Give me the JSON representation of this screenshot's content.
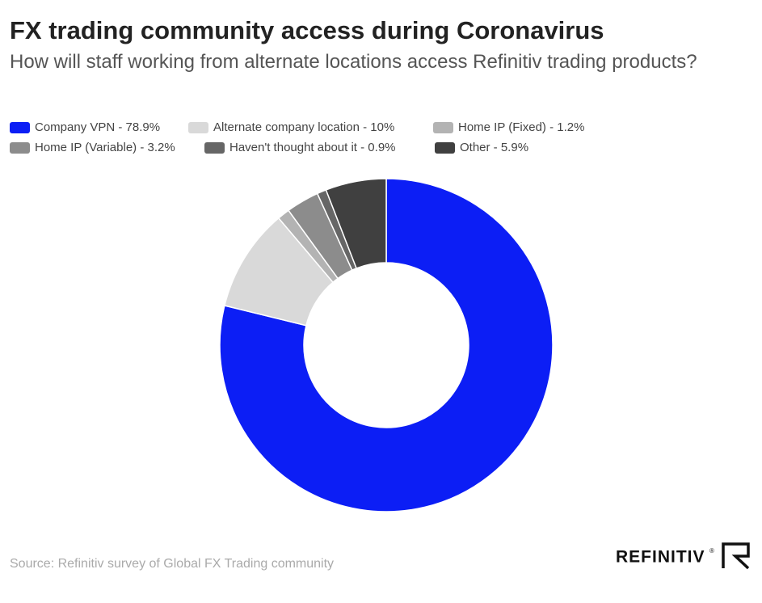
{
  "chart_data": {
    "type": "donut",
    "title": "FX trading community access during Coronavirus",
    "subtitle": "How will staff working from alternate locations access Refinitiv trading products?",
    "categories": [
      "Company VPN - 78.9%",
      "Alternate company location - 10%",
      "Home IP (Fixed) - 1.2%",
      "Home IP (Variable) - 3.2%",
      "Haven't thought about it - 0.9%",
      "Other - 5.9%"
    ],
    "values": [
      78.9,
      10,
      1.2,
      3.2,
      0.9,
      5.9
    ],
    "colors": [
      "#0c1ef5",
      "#d9d9d9",
      "#b3b3b3",
      "#8c8c8c",
      "#666666",
      "#404040"
    ],
    "source": "Source: Refinitiv survey of Global FX Trading community",
    "logo": "REFINITIV",
    "logo_mark": "®"
  }
}
